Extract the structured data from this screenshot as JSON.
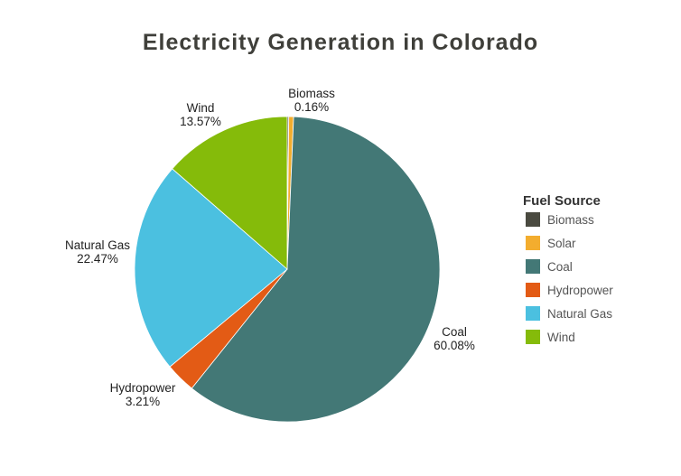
{
  "chart_data": {
    "type": "pie",
    "title": "Electricity Generation in Colorado",
    "legend_title": "Fuel Source",
    "legend_position": "right",
    "slices": [
      {
        "name": "Biomass",
        "value": 0.16,
        "label": "0.16%",
        "color": "#4a4a40"
      },
      {
        "name": "Solar",
        "value": 0.51,
        "label": "",
        "color": "#f3ad2e"
      },
      {
        "name": "Coal",
        "value": 60.08,
        "label": "60.08%",
        "color": "#437876"
      },
      {
        "name": "Hydropower",
        "value": 3.21,
        "label": "3.21%",
        "color": "#e35b15"
      },
      {
        "name": "Natural Gas",
        "value": 22.47,
        "label": "22.47%",
        "color": "#4bc0e0"
      },
      {
        "name": "Wind",
        "value": 13.57,
        "label": "13.57%",
        "color": "#85bb0a"
      }
    ]
  }
}
